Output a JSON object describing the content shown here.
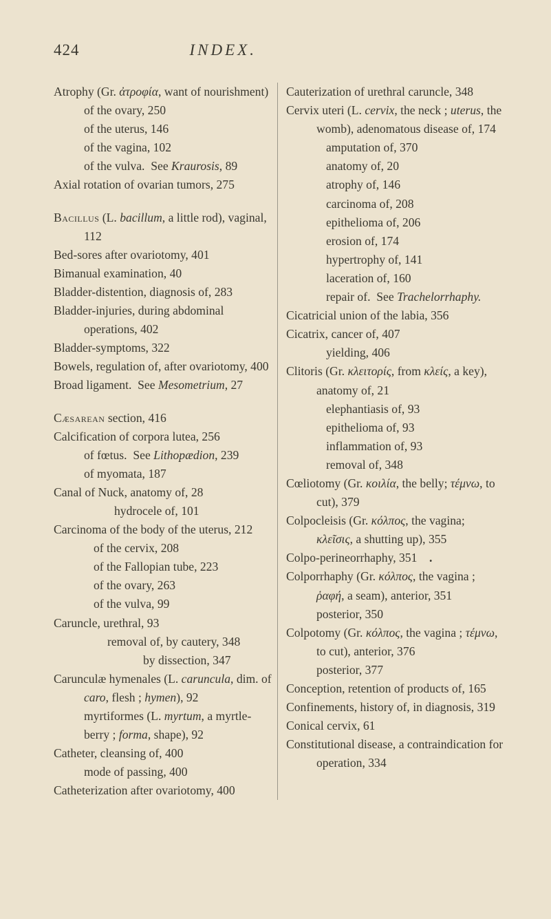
{
  "page_number": "424",
  "running_title": "INDEX.",
  "left_column": [
    {
      "html": "Atrophy (Gr. <span class='it'>ἀτροφία</span>, want of nourishment) of the ovary, 250"
    },
    {
      "html": "of the uterus, 146",
      "indent": 44
    },
    {
      "html": "of the vagina, 102",
      "indent": 44
    },
    {
      "html": "of the vulva.&nbsp;&nbsp;See <span class='it'>Kraurosis</span>, 89",
      "indent": 44
    },
    {
      "html": "Axial rotation of ovarian tumors, 275"
    },
    {
      "gap": true
    },
    {
      "html": "<span class='sc'>Bacillus</span> (L. <span class='it'>bacillum</span>, a little rod), vaginal, 112"
    },
    {
      "html": "Bed-sores after ovariotomy, 401"
    },
    {
      "html": "Bimanual examination, 40"
    },
    {
      "html": "Bladder-distention, diagnosis of, 283"
    },
    {
      "html": "Bladder-injuries, during abdominal operations, 402"
    },
    {
      "html": "Bladder-symptoms, 322"
    },
    {
      "html": "Bowels, regulation of, after ovariotomy, 400"
    },
    {
      "html": "Broad ligament.&nbsp;&nbsp;See <span class='it'>Mesometrium</span>, 27"
    },
    {
      "gap": true
    },
    {
      "html": "<span class='sc'>Cæsarean</span> section, 416"
    },
    {
      "html": "Calcification of corpora lutea, 256"
    },
    {
      "html": "of fœtus.&nbsp;&nbsp;See <span class='it'>Lithopædion</span>, 239",
      "indent": 44
    },
    {
      "html": "of myomata, 187",
      "indent": 44
    },
    {
      "html": "Canal of Nuck, anatomy of, 28"
    },
    {
      "html": "hydrocele of, 101",
      "indent": 88
    },
    {
      "html": "Carcinoma of the body of the uterus, 212"
    },
    {
      "html": "of the cervix, 208",
      "indent": 58
    },
    {
      "html": "of the Fallopian tube, 223",
      "indent": 58
    },
    {
      "html": "of the ovary, 263",
      "indent": 58
    },
    {
      "html": "of the vulva, 99",
      "indent": 58
    },
    {
      "html": "Caruncle, urethral, 93"
    },
    {
      "html": "removal of, by cautery, 348",
      "indent": 78
    },
    {
      "html": "by dissection, 347",
      "indent": 130
    },
    {
      "html": "Carunculæ hymenales (L. <span class='it'>caruncula</span>, dim. of <span class='it'>caro</span>, flesh ; <span class='it'>hymen</span>), 92"
    },
    {
      "html": "myrtiformes (L. <span class='it'>myrtum</span>, a myrtle-berry ; <span class='it'>forma</span>, shape), 92",
      "indent": 44
    },
    {
      "html": "Catheter, cleansing of, 400"
    },
    {
      "html": "mode of passing, 400",
      "indent": 44
    },
    {
      "html": "Catheterization after ovariotomy, 400"
    }
  ],
  "right_column": [
    {
      "html": "Cauterization of urethral caruncle, 348"
    },
    {
      "html": "Cervix uteri (L. <span class='it'>cervix</span>, the neck ; <span class='it'>uterus</span>, the womb), adenomatous disease of, 174"
    },
    {
      "html": "amputation of, 370",
      "indent": 58
    },
    {
      "html": "anatomy of, 20",
      "indent": 58
    },
    {
      "html": "atrophy of, 146",
      "indent": 58
    },
    {
      "html": "carcinoma of, 208",
      "indent": 58
    },
    {
      "html": "epithelioma of, 206",
      "indent": 58
    },
    {
      "html": "erosion of, 174",
      "indent": 58
    },
    {
      "html": "hypertrophy of, 141",
      "indent": 58
    },
    {
      "html": "laceration of, 160",
      "indent": 58
    },
    {
      "html": "repair of.&nbsp;&nbsp;See <span class='it'>Trachelorrhaphy.</span>",
      "indent": 58
    },
    {
      "html": "Cicatricial union of the labia, 356"
    },
    {
      "html": "Cicatrix, cancer of, 407"
    },
    {
      "html": "yielding, 406",
      "indent": 58
    },
    {
      "html": "Clitoris (Gr. <span class='it'>κλειτορίς</span>, from <span class='it'>κλείς</span>, a key), anatomy of, 21"
    },
    {
      "html": "elephantiasis of, 93",
      "indent": 58
    },
    {
      "html": "epithelioma of, 93",
      "indent": 58
    },
    {
      "html": "inflammation of, 93",
      "indent": 58
    },
    {
      "html": "removal of, 348",
      "indent": 58
    },
    {
      "html": "Cœliotomy (Gr. <span class='it'>κοιλία</span>, the belly; <span class='it'>τέμνω</span>, to cut), 379"
    },
    {
      "html": "Colpocleisis (Gr. <span class='it'>κόλπος</span>, the vagina; <span class='it'>κλεῖσις</span>, a shutting up), 355"
    },
    {
      "html": "Colpo-perineorrhaphy, 351&nbsp;&nbsp;&nbsp;&nbsp;<b>.</b>"
    },
    {
      "html": "Colporrhaphy (Gr. <span class='it'>κόλπος</span>, the vagina ; <span class='it'>ῥαφή</span>, a seam), anterior, 351"
    },
    {
      "html": "posterior, 350",
      "indent": 44
    },
    {
      "html": "Colpotomy (Gr. <span class='it'>κόλπος</span>, the vagina ; <span class='it'>τέμνω</span>, to cut), anterior, 376"
    },
    {
      "html": "posterior, 377",
      "indent": 44
    },
    {
      "html": "Conception, retention of products of, 165"
    },
    {
      "html": "Confinements, history of, in diagnosis, 319"
    },
    {
      "html": "Conical cervix, 61"
    },
    {
      "html": "Constitutional disease, a contraindication for operation, 334"
    }
  ]
}
